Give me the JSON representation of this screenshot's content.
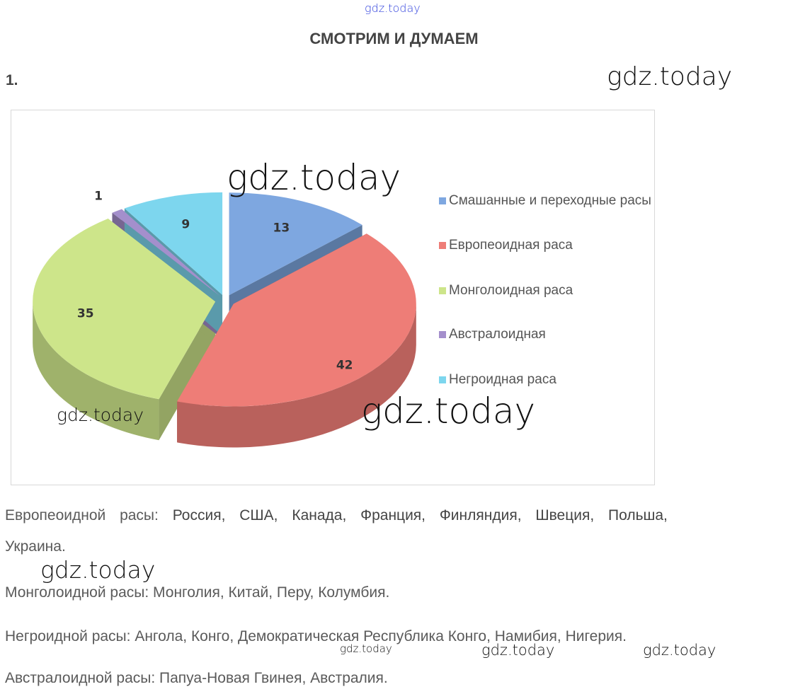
{
  "header": {
    "title": "СМОТРИМ И ДУМАЕМ",
    "task_number": "1."
  },
  "chart_data": {
    "type": "pie",
    "style": "3d-exploded",
    "categories": [
      "Смашанные и переходные расы",
      "Европеоидная раса",
      "Монголоидная раса",
      "Австралоидная",
      "Негроидная раса"
    ],
    "values": [
      13,
      42,
      35,
      1,
      9
    ],
    "data_labels": [
      "13",
      "42",
      "35",
      "1",
      "9"
    ],
    "colors": [
      "#7ea7e0",
      "#ee7d77",
      "#cde58a",
      "#a48fcc",
      "#7dd6ee"
    ],
    "legend_position": "right"
  },
  "paragraphs": [
    {
      "label": "Европеоидной расы:",
      "text": " Россия, США, Канада, Франция, Финляндия, Швеция, Польша,"
    },
    {
      "label": "",
      "text": "Украина."
    },
    {
      "label": "Монголоидной расы:",
      "text": " Монголия, Китай, Перу, Колумбия."
    },
    {
      "label": "Негроидной расы:",
      "text": " Ангола, Конго, Демократическая Республика Конго, Намибия, Нигерия."
    },
    {
      "label": "Австралоидной расы:",
      "text": " Папуа-Новая Гвинея, Австралия."
    }
  ],
  "watermarks": [
    "gdz.today",
    "gdz.today",
    "gdz.today",
    "gdz.today",
    "gdz.today",
    "gdz.today",
    "gdz.today",
    "gdz.today",
    "gdz.today"
  ]
}
